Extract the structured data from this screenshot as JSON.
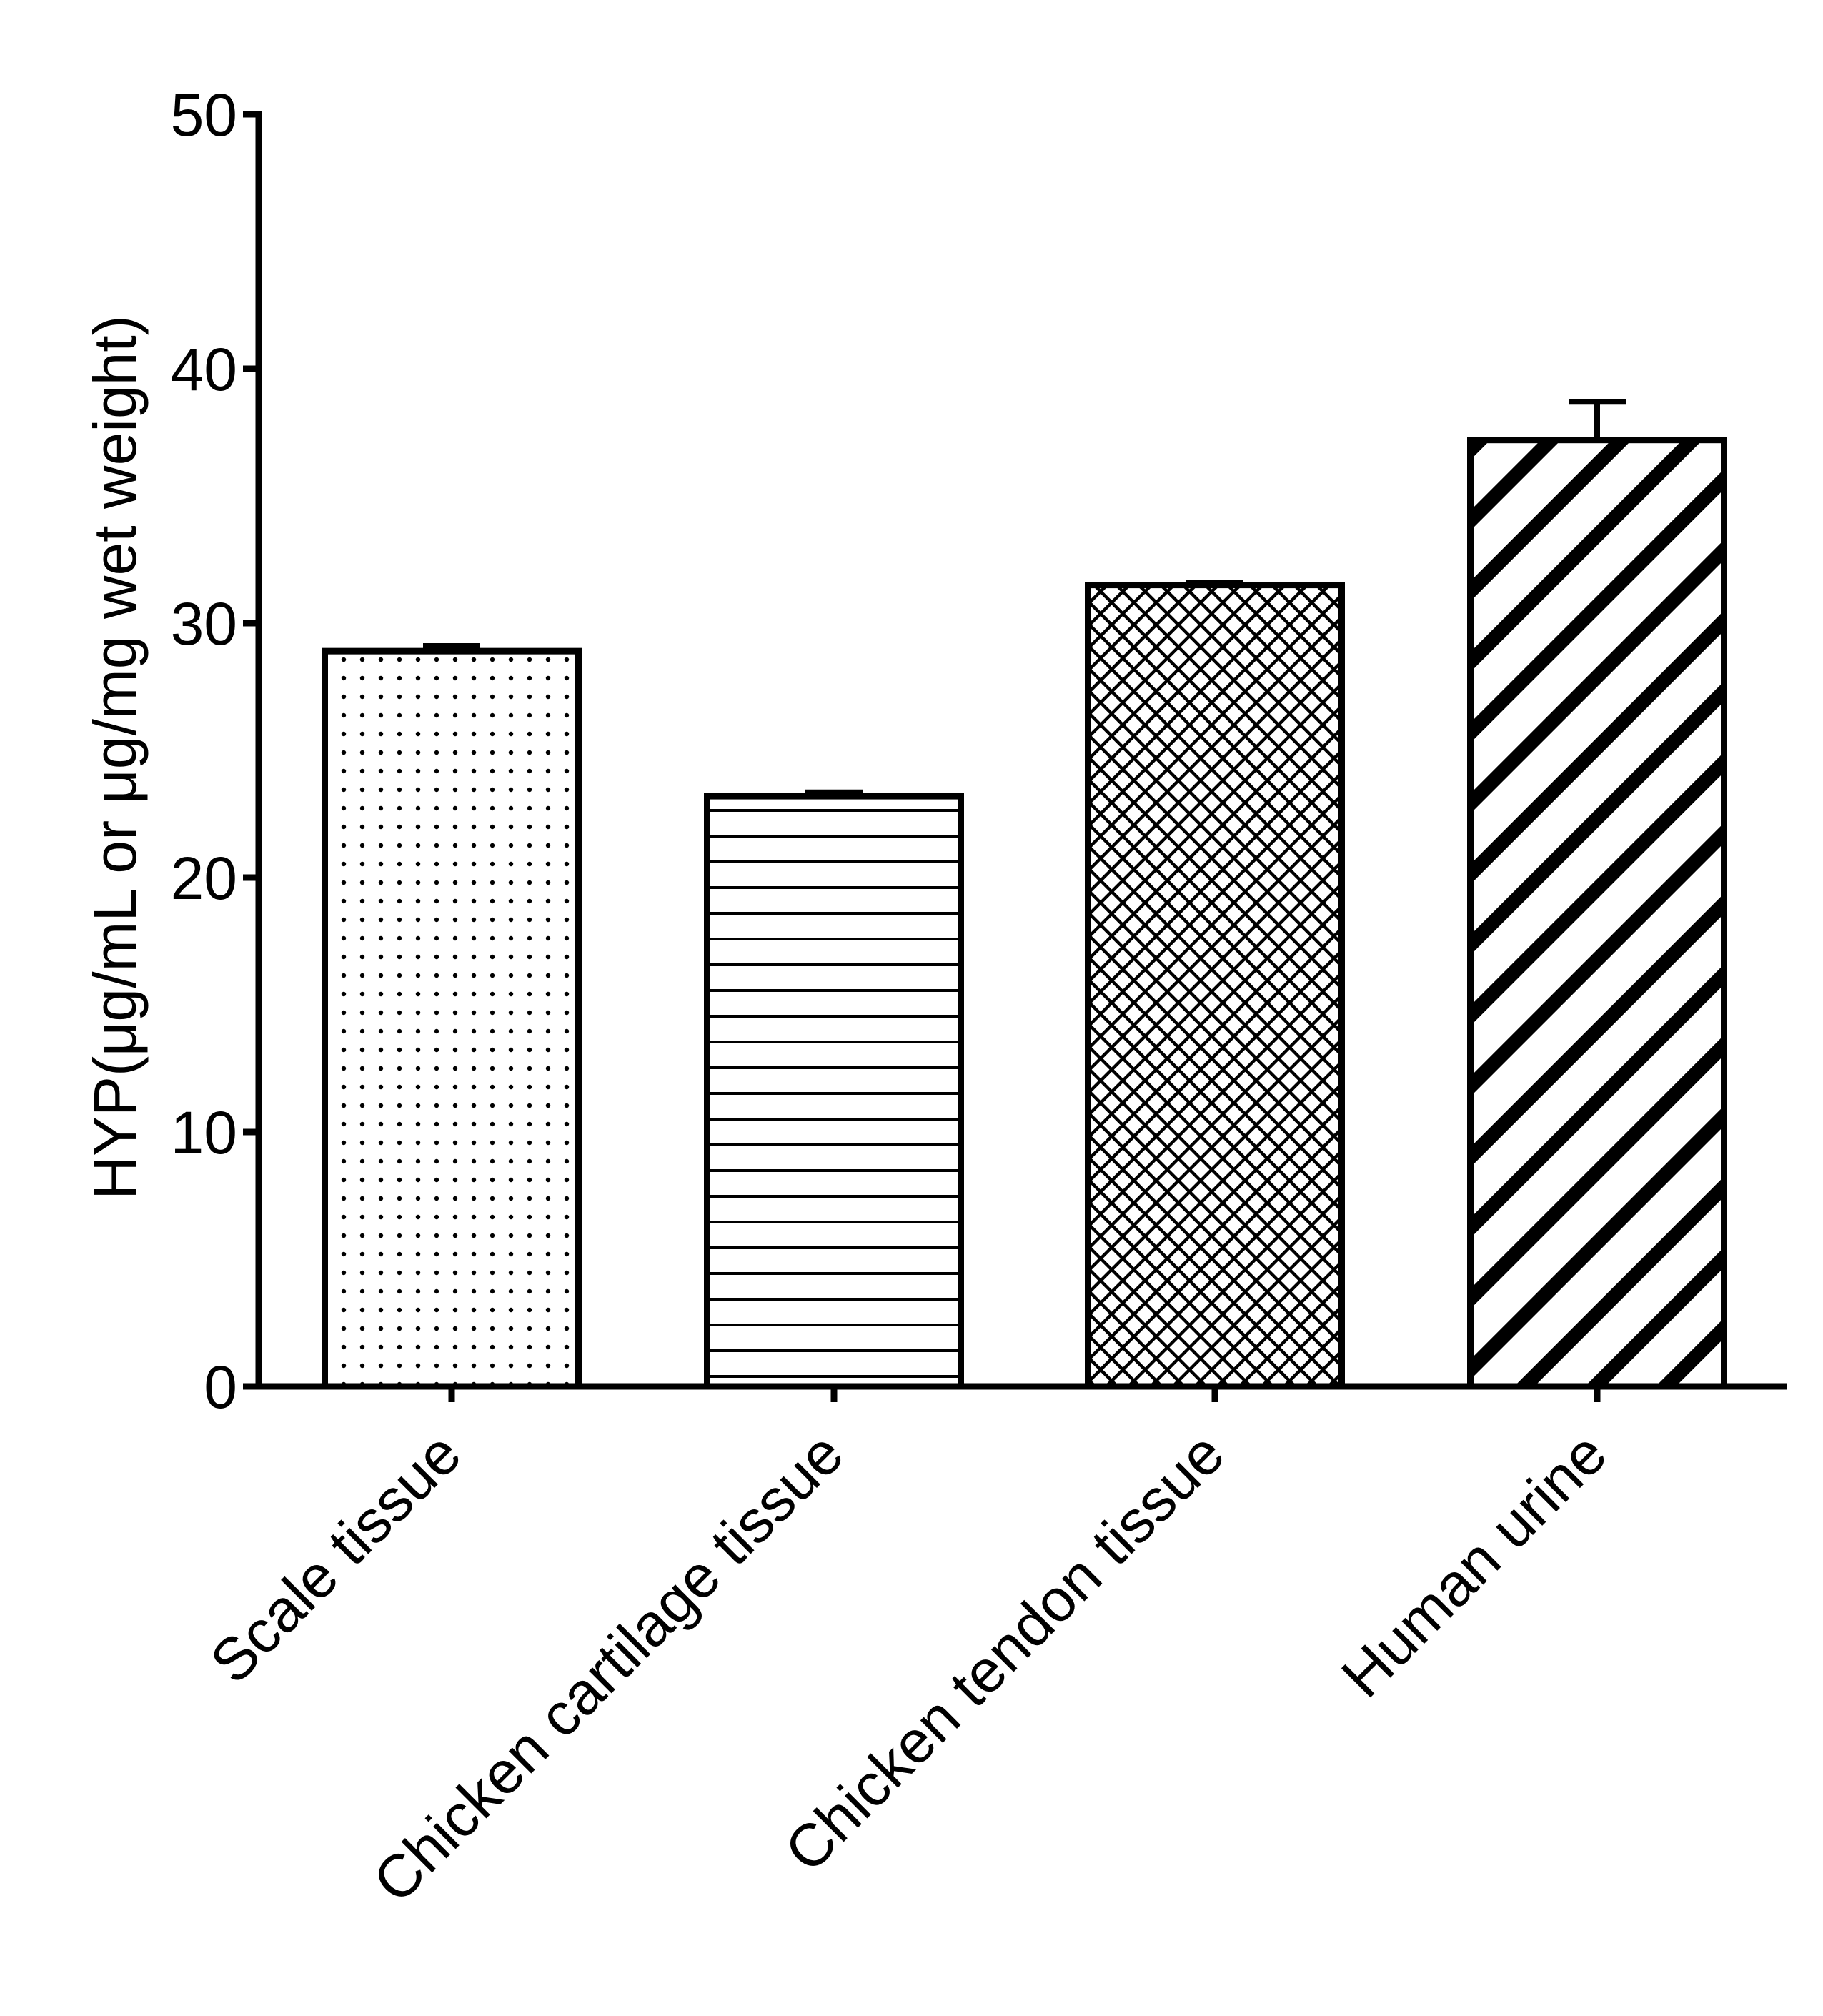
{
  "chart_data": {
    "type": "bar",
    "title": "",
    "xlabel": "",
    "ylabel": "HYP(μg/mL or μg/mg wet weight)",
    "ylim": [
      0,
      50
    ],
    "yticks": [
      "0",
      "10",
      "20",
      "30",
      "40",
      "50"
    ],
    "categories": [
      "Scale tissue",
      "Chicken cartilage tissue",
      "Chicken tendon tissue",
      "Human urine"
    ],
    "values": [
      28.9,
      23.2,
      31.5,
      37.2
    ],
    "errors": [
      0.2,
      0.15,
      0.1,
      1.5
    ],
    "patterns": [
      "dots",
      "horizontal-lines",
      "crosshatch",
      "diagonal-stripes"
    ],
    "grid": false,
    "legend": "none"
  },
  "colors": {
    "ink": "#000000",
    "background": "#ffffff"
  }
}
